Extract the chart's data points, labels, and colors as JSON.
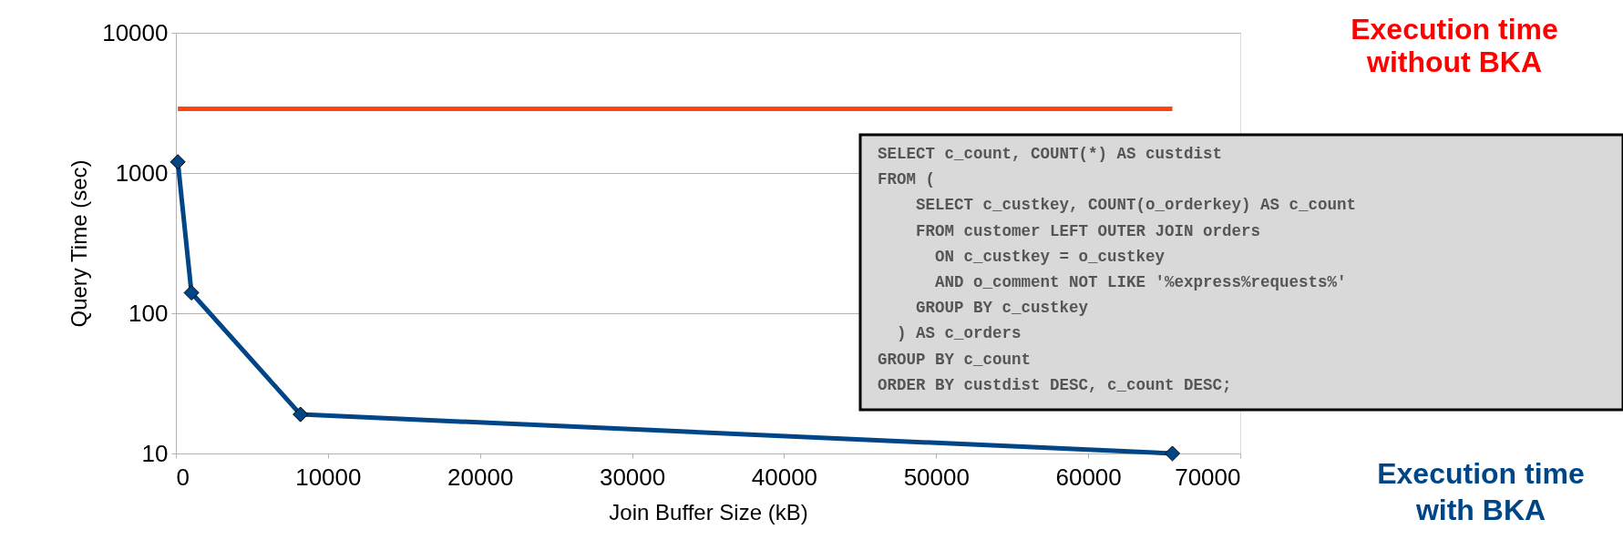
{
  "chart_data": {
    "type": "line",
    "xlabel": "Join Buffer Size (kB)",
    "ylabel": "Query Time (sec)",
    "series": [
      {
        "name": "Execution time without BKA",
        "color": "#ff4412",
        "marker": "none",
        "x": [
          128,
          65536
        ],
        "values": [
          2870,
          2870
        ]
      },
      {
        "name": "Execution time with BKA",
        "color": "#004586",
        "marker": "diamond",
        "x": [
          128,
          1024,
          8192,
          65536
        ],
        "values": [
          1200,
          140,
          19,
          10
        ]
      }
    ],
    "xlim": [
      0,
      70000
    ],
    "xticks": [
      0,
      10000,
      20000,
      30000,
      40000,
      50000,
      60000,
      70000
    ],
    "ylim": [
      10,
      10000
    ],
    "yticks": [
      10,
      100,
      1000,
      10000
    ],
    "log": true,
    "grid": "y",
    "legend": false,
    "annotations": [
      "SELECT c_count, COUNT(*) AS custdist\nFROM (\n    SELECT c_custkey, COUNT(o_orderkey) AS c_count\n    FROM customer LEFT OUTER JOIN orders\n      ON c_custkey = o_custkey\n      AND o_comment NOT LIKE '%express%requests%'\n    GROUP BY c_custkey\n  ) AS c_orders\nGROUP BY c_count\nORDER BY custdist DESC, c_count DESC;"
    ]
  }
}
